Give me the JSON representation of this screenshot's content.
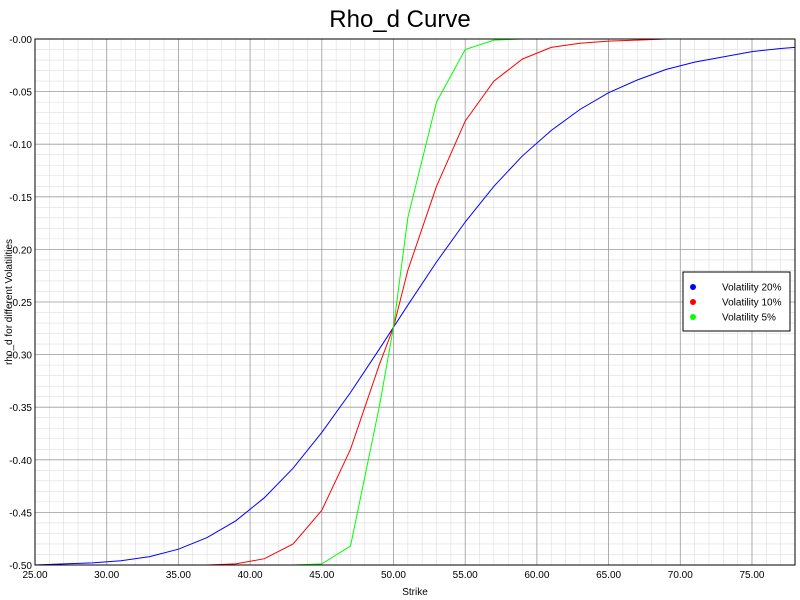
{
  "chart_data": {
    "type": "line",
    "title": "Rho_d Curve",
    "xlabel": "Strike",
    "ylabel": "rho_d for different Volatilities",
    "xlim": [
      25,
      78
    ],
    "ylim": [
      -0.5,
      0
    ],
    "x_ticks": [
      "25.00",
      "30.00",
      "35.00",
      "40.00",
      "45.00",
      "50.00",
      "55.00",
      "60.00",
      "65.00",
      "70.00",
      "75.00"
    ],
    "y_ticks": [
      "-0.00",
      "-0.05",
      "-0.10",
      "-0.15",
      "-0.20",
      "-0.25",
      "-0.30",
      "-0.35",
      "-0.40",
      "-0.45",
      "-0.50"
    ],
    "grid": true,
    "legend_position": "right",
    "x": [
      25,
      27,
      29,
      31,
      33,
      35,
      37,
      39,
      41,
      43,
      45,
      47,
      49,
      50,
      51,
      53,
      55,
      57,
      59,
      61,
      63,
      65,
      67,
      69,
      71,
      73,
      75,
      77,
      78
    ],
    "series": [
      {
        "name": "Volatility 20%",
        "color": "#0000ff",
        "values": [
          -0.5,
          -0.499,
          -0.498,
          -0.496,
          -0.492,
          -0.485,
          -0.474,
          -0.458,
          -0.436,
          -0.408,
          -0.374,
          -0.336,
          -0.295,
          -0.274,
          -0.253,
          -0.212,
          -0.174,
          -0.14,
          -0.111,
          -0.087,
          -0.067,
          -0.051,
          -0.039,
          -0.029,
          -0.022,
          -0.017,
          -0.012,
          -0.009,
          -0.008
        ]
      },
      {
        "name": "Volatility 10%",
        "color": "#ff0000",
        "values": [
          -0.5,
          -0.5,
          -0.5,
          -0.5,
          -0.5,
          -0.5,
          -0.5,
          -0.499,
          -0.494,
          -0.48,
          -0.448,
          -0.39,
          -0.31,
          -0.274,
          -0.22,
          -0.14,
          -0.078,
          -0.04,
          -0.019,
          -0.008,
          -0.004,
          -0.002,
          -0.001,
          0,
          0,
          0,
          0,
          0,
          0
        ]
      },
      {
        "name": "Volatility 5%",
        "color": "#00ff00",
        "values": [
          -0.5,
          -0.5,
          -0.5,
          -0.5,
          -0.5,
          -0.5,
          -0.5,
          -0.5,
          -0.5,
          -0.5,
          -0.499,
          -0.482,
          -0.35,
          -0.274,
          -0.17,
          -0.06,
          -0.01,
          -0.001,
          0,
          0,
          0,
          0,
          0,
          0,
          0,
          0,
          0,
          0,
          0
        ]
      }
    ]
  }
}
